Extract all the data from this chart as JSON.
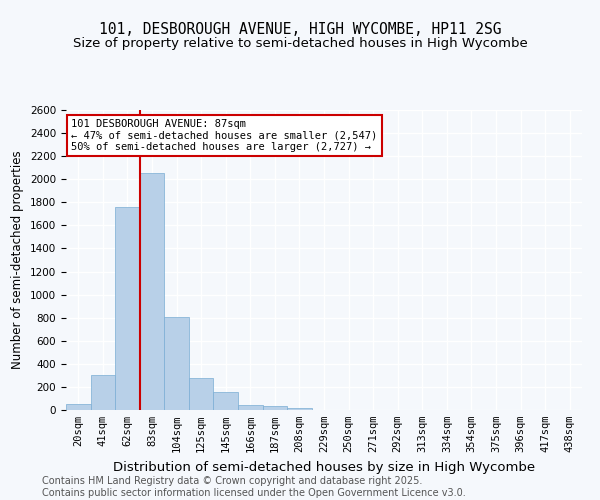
{
  "title": "101, DESBOROUGH AVENUE, HIGH WYCOMBE, HP11 2SG",
  "subtitle": "Size of property relative to semi-detached houses in High Wycombe",
  "xlabel": "Distribution of semi-detached houses by size in High Wycombe",
  "ylabel": "Number of semi-detached properties",
  "footer1": "Contains HM Land Registry data © Crown copyright and database right 2025.",
  "footer2": "Contains public sector information licensed under the Open Government Licence v3.0.",
  "categories": [
    "20sqm",
    "41sqm",
    "62sqm",
    "83sqm",
    "104sqm",
    "125sqm",
    "145sqm",
    "166sqm",
    "187sqm",
    "208sqm",
    "229sqm",
    "250sqm",
    "271sqm",
    "292sqm",
    "313sqm",
    "334sqm",
    "354sqm",
    "375sqm",
    "396sqm",
    "417sqm",
    "438sqm"
  ],
  "values": [
    55,
    300,
    1760,
    2050,
    810,
    280,
    155,
    45,
    35,
    20,
    0,
    0,
    0,
    0,
    0,
    0,
    0,
    0,
    0,
    0,
    0
  ],
  "bar_color": "#b8d0e8",
  "bar_edge_color": "#7aadd4",
  "vline_x_index": 3,
  "vline_color": "#cc0000",
  "annotation_text": "101 DESBOROUGH AVENUE: 87sqm\n← 47% of semi-detached houses are smaller (2,547)\n50% of semi-detached houses are larger (2,727) →",
  "annotation_box_color": "#ffffff",
  "annotation_box_edge": "#cc0000",
  "ylim": [
    0,
    2600
  ],
  "background_color": "#f5f8fc",
  "grid_color": "#ffffff",
  "title_fontsize": 10.5,
  "subtitle_fontsize": 9.5,
  "xlabel_fontsize": 9.5,
  "ylabel_fontsize": 8.5,
  "tick_fontsize": 7.5,
  "annotation_fontsize": 7.5,
  "footer_fontsize": 7.0
}
